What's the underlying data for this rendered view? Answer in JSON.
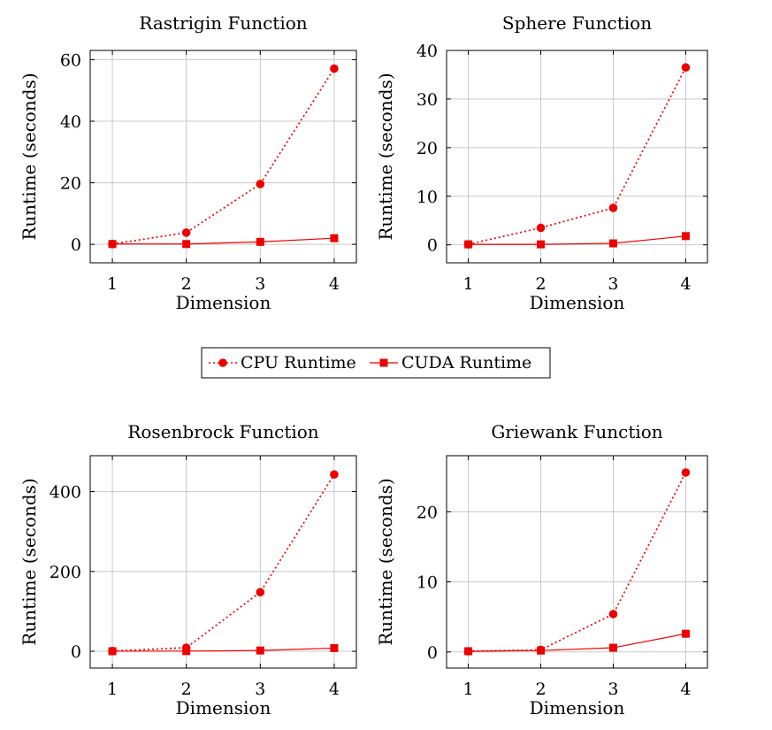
{
  "chart_data": [
    {
      "type": "line",
      "title": "Rastrigin Function",
      "xlabel": "Dimension",
      "ylabel": "Runtime (seconds)",
      "x": [
        1,
        2,
        3,
        4
      ],
      "xlim": [
        0.7,
        4.3
      ],
      "ylim": [
        -6,
        63
      ],
      "yticks": [
        0,
        20,
        40,
        60
      ],
      "grid": true,
      "series": [
        {
          "name": "CPU Runtime",
          "values": [
            0.1,
            3.8,
            19.6,
            57.1
          ]
        },
        {
          "name": "CUDA Runtime",
          "values": [
            0.1,
            0.1,
            0.8,
            2.0
          ]
        }
      ]
    },
    {
      "type": "line",
      "title": "Sphere Function",
      "xlabel": "Dimension",
      "ylabel": "Runtime (seconds)",
      "x": [
        1,
        2,
        3,
        4
      ],
      "xlim": [
        0.7,
        4.3
      ],
      "ylim": [
        -3.7,
        40
      ],
      "yticks": [
        0,
        10,
        20,
        30,
        40
      ],
      "grid": true,
      "series": [
        {
          "name": "CPU Runtime",
          "values": [
            0.1,
            3.5,
            7.6,
            36.5
          ]
        },
        {
          "name": "CUDA Runtime",
          "values": [
            0.1,
            0.1,
            0.3,
            1.8
          ]
        }
      ]
    },
    {
      "type": "line",
      "title": "Rosenbrock Function",
      "xlabel": "Dimension",
      "ylabel": "Runtime (seconds)",
      "x": [
        1,
        2,
        3,
        4
      ],
      "xlim": [
        0.7,
        4.3
      ],
      "ylim": [
        -42,
        490
      ],
      "yticks": [
        0,
        200,
        400
      ],
      "grid": true,
      "series": [
        {
          "name": "CPU Runtime",
          "values": [
            0.5,
            9,
            148,
            443
          ]
        },
        {
          "name": "CUDA Runtime",
          "values": [
            0.2,
            0.5,
            2,
            8
          ]
        }
      ]
    },
    {
      "type": "line",
      "title": "Griewank Function",
      "xlabel": "Dimension",
      "ylabel": "Runtime (seconds)",
      "x": [
        1,
        2,
        3,
        4
      ],
      "xlim": [
        0.7,
        4.3
      ],
      "ylim": [
        -2.3,
        28
      ],
      "yticks": [
        0,
        10,
        20
      ],
      "grid": true,
      "series": [
        {
          "name": "CPU Runtime",
          "values": [
            0.1,
            0.3,
            5.4,
            25.6
          ]
        },
        {
          "name": "CUDA Runtime",
          "values": [
            0.1,
            0.2,
            0.6,
            2.6
          ]
        }
      ]
    }
  ],
  "legend": {
    "placement": "center",
    "entries": [
      {
        "label": "CPU Runtime",
        "marker": "circle",
        "line": "dotted"
      },
      {
        "label": "CUDA Runtime",
        "marker": "square",
        "line": "solid"
      }
    ]
  },
  "colors": {
    "series": "#ee0000",
    "grid": "#c8c8c8",
    "axis": "#000000"
  }
}
